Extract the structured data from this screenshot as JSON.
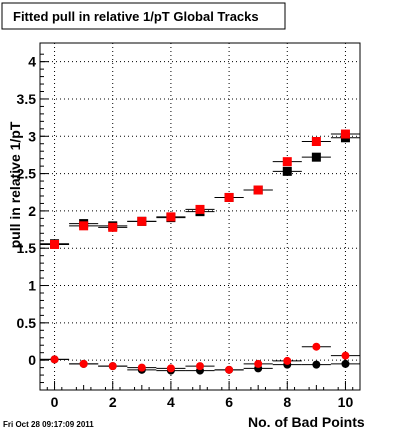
{
  "date_stamp": "Fri Oct 28 09:17:09 2011",
  "chart_data": {
    "type": "scatter",
    "title": "Fitted pull in relative 1/pT  Global Tracks",
    "xlabel": "No. of Bad Points",
    "ylabel": "pull in relative 1/pT",
    "xlim": [
      -0.5,
      10.5
    ],
    "ylim": [
      -0.4,
      4.25
    ],
    "grid": true,
    "x_ticks": [
      "0",
      "2",
      "4",
      "6",
      "8",
      "10"
    ],
    "y_ticks": [
      "0",
      "0.5",
      "1",
      "1.5",
      "2",
      "2.5",
      "3",
      "3.5",
      "4"
    ],
    "x_tick_values": [
      0,
      2,
      4,
      6,
      8,
      10
    ],
    "y_tick_values": [
      0,
      0.5,
      1,
      1.5,
      2,
      2.5,
      3,
      3.5,
      4
    ],
    "series": [
      {
        "marker": "square",
        "color": "#000000",
        "x": [
          0,
          1,
          2,
          3,
          4,
          5,
          6,
          7,
          8,
          9,
          10
        ],
        "y": [
          1.56,
          1.83,
          1.8,
          1.86,
          1.91,
          1.99,
          2.18,
          2.28,
          2.53,
          2.72,
          2.98
        ]
      },
      {
        "marker": "square",
        "color": "#ff0000",
        "x": [
          0,
          1,
          2,
          3,
          4,
          5,
          6,
          7,
          8,
          9,
          10
        ],
        "y": [
          1.55,
          1.8,
          1.78,
          1.86,
          1.92,
          2.02,
          2.18,
          2.28,
          2.66,
          2.93,
          3.03
        ]
      },
      {
        "marker": "circle",
        "color": "#000000",
        "x": [
          0,
          1,
          2,
          3,
          4,
          5,
          6,
          7,
          8,
          9,
          10
        ],
        "y": [
          0.01,
          -0.05,
          -0.08,
          -0.13,
          -0.14,
          -0.14,
          -0.13,
          -0.11,
          -0.06,
          -0.06,
          -0.05
        ]
      },
      {
        "marker": "circle",
        "color": "#ff0000",
        "x": [
          0,
          1,
          2,
          3,
          4,
          5,
          6,
          7,
          8,
          9,
          10
        ],
        "y": [
          0.01,
          -0.05,
          -0.08,
          -0.1,
          -0.11,
          -0.08,
          -0.13,
          -0.05,
          -0.01,
          0.18,
          0.06
        ]
      }
    ]
  }
}
